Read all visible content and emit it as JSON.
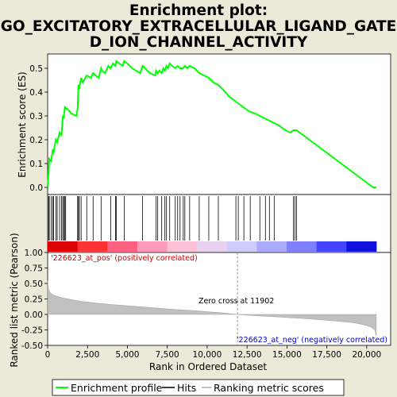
{
  "chart_data": [
    {
      "type": "line",
      "title": [
        "Enrichment plot:",
        "GO_EXCITATORY_EXTRACELLULAR_LIGAND_GATE",
        "D_ION_CHANNEL_ACTIVITY"
      ],
      "ylabel": "Enrichment score (ES)",
      "xlim": [
        0,
        21500
      ],
      "ylim": [
        -0.03,
        0.56
      ],
      "yticks": [
        "0.0",
        "0.1",
        "0.2",
        "0.3",
        "0.4",
        "0.5"
      ],
      "grid": false,
      "color": "#00ff00",
      "series": [
        {
          "name": "Enrichment profile",
          "x": [
            0,
            60,
            100,
            220,
            330,
            380,
            520,
            600,
            750,
            870,
            950,
            1010,
            1080,
            1130,
            1230,
            1500,
            1800,
            1880,
            1930,
            1990,
            2100,
            2200,
            2450,
            2700,
            2850,
            3000,
            3200,
            3350,
            3400,
            3600,
            3800,
            3950,
            4100,
            4250,
            4300,
            4500,
            4700,
            4800,
            5000,
            5300,
            5800,
            5950,
            6100,
            6400,
            6750,
            6800,
            6900,
            7000,
            7150,
            7250,
            7350,
            7450,
            7550,
            7650,
            7800,
            8000,
            8150,
            8300,
            8500,
            8600,
            8750,
            8900,
            9200,
            9500,
            9800,
            10100,
            10400,
            10700,
            11000,
            11400,
            11800,
            12200,
            12600,
            13000,
            13300,
            13600,
            13900,
            14200,
            14500,
            14900,
            15200,
            15400,
            15500,
            15600,
            15800,
            16200,
            16800,
            17400,
            18000,
            18600,
            19200,
            19800,
            20400,
            20600
          ],
          "y": [
            0.0,
            0.06,
            0.12,
            0.11,
            0.16,
            0.15,
            0.2,
            0.19,
            0.23,
            0.22,
            0.3,
            0.29,
            0.34,
            0.33,
            0.33,
            0.31,
            0.3,
            0.33,
            0.43,
            0.42,
            0.46,
            0.44,
            0.47,
            0.46,
            0.48,
            0.47,
            0.46,
            0.5,
            0.49,
            0.48,
            0.51,
            0.5,
            0.52,
            0.51,
            0.53,
            0.52,
            0.51,
            0.53,
            0.52,
            0.5,
            0.48,
            0.51,
            0.5,
            0.48,
            0.47,
            0.49,
            0.48,
            0.49,
            0.48,
            0.5,
            0.49,
            0.51,
            0.5,
            0.52,
            0.51,
            0.5,
            0.51,
            0.5,
            0.5,
            0.51,
            0.5,
            0.51,
            0.5,
            0.48,
            0.47,
            0.46,
            0.44,
            0.43,
            0.41,
            0.38,
            0.36,
            0.34,
            0.32,
            0.31,
            0.3,
            0.29,
            0.28,
            0.27,
            0.26,
            0.24,
            0.23,
            0.24,
            0.24,
            0.24,
            0.23,
            0.21,
            0.18,
            0.15,
            0.12,
            0.09,
            0.06,
            0.03,
            0.0,
            0.0
          ]
        }
      ]
    },
    {
      "type": "bar",
      "title": "",
      "ylabel": "",
      "series": [
        {
          "name": "Hits",
          "x": [
            60,
            100,
            220,
            330,
            380,
            520,
            600,
            750,
            870,
            950,
            1010,
            1080,
            1130,
            1880,
            1930,
            1990,
            2100,
            2450,
            2850,
            3350,
            3950,
            4250,
            4300,
            4800,
            5950,
            6800,
            6900,
            7150,
            7350,
            7450,
            7650,
            8000,
            8150,
            8300,
            8500,
            8600,
            8900,
            9500,
            10100,
            10700,
            11800,
            11950,
            12300,
            12700,
            13300,
            13650,
            13900,
            14200,
            15400,
            15500,
            15600
          ]
        }
      ],
      "colorbar": [
        "#dd0000",
        "#ff3333",
        "#ff6080",
        "#ff99bb",
        "#ffc0d8",
        "#e8d0f0",
        "#ccccff",
        "#aaaaff",
        "#8080ff",
        "#4444ff",
        "#1111dd"
      ]
    },
    {
      "type": "area",
      "ylabel": "Ranked list metric (Pearson)",
      "xlabel": "Rank in Ordered Dataset",
      "xlim": [
        0,
        21500
      ],
      "ylim": [
        -0.5,
        1.0
      ],
      "xticks": [
        "0",
        "2,500",
        "5,000",
        "7,500",
        "10,000",
        "12,500",
        "15,000",
        "17,500",
        "20,000"
      ],
      "xtick_values": [
        0,
        2500,
        5000,
        7500,
        10000,
        12500,
        15000,
        17500,
        20000
      ],
      "yticks": [
        "-0.50",
        "-0.25",
        "0.00",
        "0.25",
        "0.50",
        "0.75",
        "1.00"
      ],
      "ytick_values": [
        -0.5,
        -0.25,
        0,
        0.25,
        0.5,
        0.75,
        1.0
      ],
      "grid": false,
      "zero_cross": 11902,
      "series": [
        {
          "name": "Ranking metric scores",
          "x": [
            0,
            20,
            50,
            100,
            200,
            400,
            700,
            1000,
            1500,
            2000,
            3000,
            4000,
            5000,
            6000,
            7000,
            8000,
            9000,
            10000,
            11000,
            11902,
            13000,
            14000,
            15000,
            16000,
            17000,
            18000,
            19000,
            19500,
            20000,
            20300,
            20500,
            20600
          ],
          "y": [
            0.55,
            0.48,
            0.42,
            0.38,
            0.34,
            0.31,
            0.285,
            0.265,
            0.24,
            0.215,
            0.185,
            0.16,
            0.14,
            0.12,
            0.1,
            0.08,
            0.065,
            0.045,
            0.025,
            0.0,
            -0.02,
            -0.035,
            -0.05,
            -0.065,
            -0.085,
            -0.105,
            -0.13,
            -0.15,
            -0.18,
            -0.21,
            -0.25,
            -0.35
          ]
        }
      ],
      "annotations": [
        "'226623_at_pos' (positively correlated)",
        "Zero cross at 11902",
        "'226623_at_neg' (negatively correlated)"
      ]
    }
  ],
  "legend": {
    "placement": "bottom",
    "items": [
      "Enrichment profile",
      "Hits",
      "Ranking metric scores"
    ]
  }
}
